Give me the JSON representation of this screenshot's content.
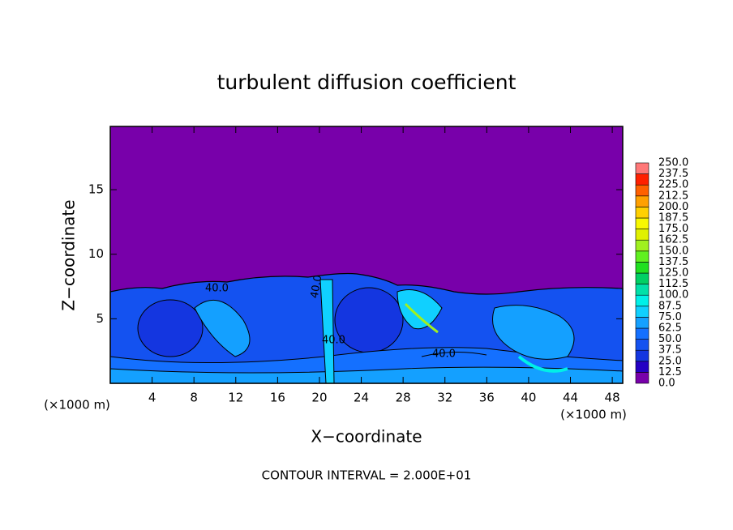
{
  "chart_data": {
    "type": "contour",
    "title": "turbulent diffusion coefficient",
    "x_label": "X−coordinate",
    "y_label": "Z−coordinate",
    "x_unit_label": "(×1000 m)",
    "x_unit_label_right": "(×1000 m)",
    "footnote": "CONTOUR INTERVAL = 2.000E+01",
    "contour_labels": [
      "40.0",
      "40.0",
      "40.0",
      "40.0"
    ],
    "xlim": [
      0,
      49
    ],
    "xticks": [
      4,
      8,
      12,
      16,
      20,
      24,
      28,
      32,
      36,
      40,
      44,
      48
    ],
    "ylim": [
      0,
      19.9
    ],
    "yticks": [
      5,
      10,
      15
    ],
    "colorbar": {
      "levels": [
        {
          "value": 0,
          "label": "0.0"
        },
        12.5,
        {
          "value": 25,
          "label": "25.0"
        },
        37.5,
        {
          "value": 50,
          "label": "50.0"
        },
        62.5,
        {
          "value": 75,
          "label": "75.0"
        },
        87.5,
        {
          "value": 100,
          "label": "100.0"
        },
        112.5,
        {
          "value": 125,
          "label": "125.0"
        },
        137.5,
        {
          "value": 150,
          "label": "150.0"
        },
        162.5,
        {
          "value": 175,
          "label": "175.0"
        },
        187.5,
        {
          "value": 200,
          "label": "200.0"
        },
        212.5,
        {
          "value": 225,
          "label": "225.0"
        },
        237.5,
        {
          "value": 250,
          "label": "250.0"
        }
      ],
      "colors": [
        "#7800aa",
        "#2400c4",
        "#1436e0",
        "#1452f0",
        "#1470ff",
        "#14a0ff",
        "#10d0ff",
        "#00f0e8",
        "#00e0a8",
        "#00d064",
        "#20e020",
        "#60f020",
        "#a0f020",
        "#e0f000",
        "#f8f800",
        "#ffd000",
        "#ffa000",
        "#ff6000",
        "#ff2000",
        "#ff7878"
      ]
    }
  }
}
